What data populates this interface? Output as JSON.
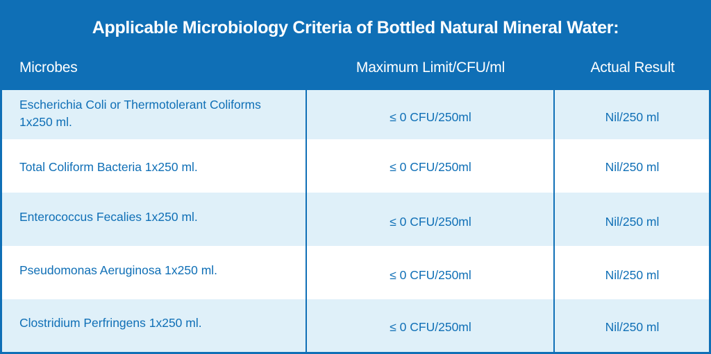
{
  "title": "Applicable Microbiology Criteria of Bottled Natural Mineral Water:",
  "columns": {
    "microbes": "Microbes",
    "limit": "Maximum Limit/CFU/ml",
    "result": "Actual Result"
  },
  "rows": [
    {
      "microbe_line1": "Escherichia Coli or Thermotolerant Coliforms",
      "microbe_line2": "1x250 ml.",
      "limit": "≤ 0 CFU/250ml",
      "result": "Nil/250 ml"
    },
    {
      "microbe_line1": "Total Coliform Bacteria 1x250 ml.",
      "limit": "≤ 0 CFU/250ml",
      "result": "Nil/250 ml"
    },
    {
      "microbe_line1": "Enterococcus Fecalies 1x250 ml.",
      "limit": "≤ 0 CFU/250ml",
      "result": "Nil/250 ml"
    },
    {
      "microbe_line1": "Pseudomonas Aeruginosa 1x250 ml.",
      "limit": "≤ 0 CFU/250ml",
      "result": "Nil/250 ml"
    },
    {
      "microbe_line1": "Clostridium Perfringens 1x250 ml.",
      "limit": "≤ 0 CFU/250ml",
      "result": "Nil/250 ml"
    }
  ],
  "colors": {
    "header_blue": "#0f6fb6",
    "row_shade": "#dff0f9",
    "row_plain": "#ffffff",
    "text_blue": "#0f6fb6"
  }
}
